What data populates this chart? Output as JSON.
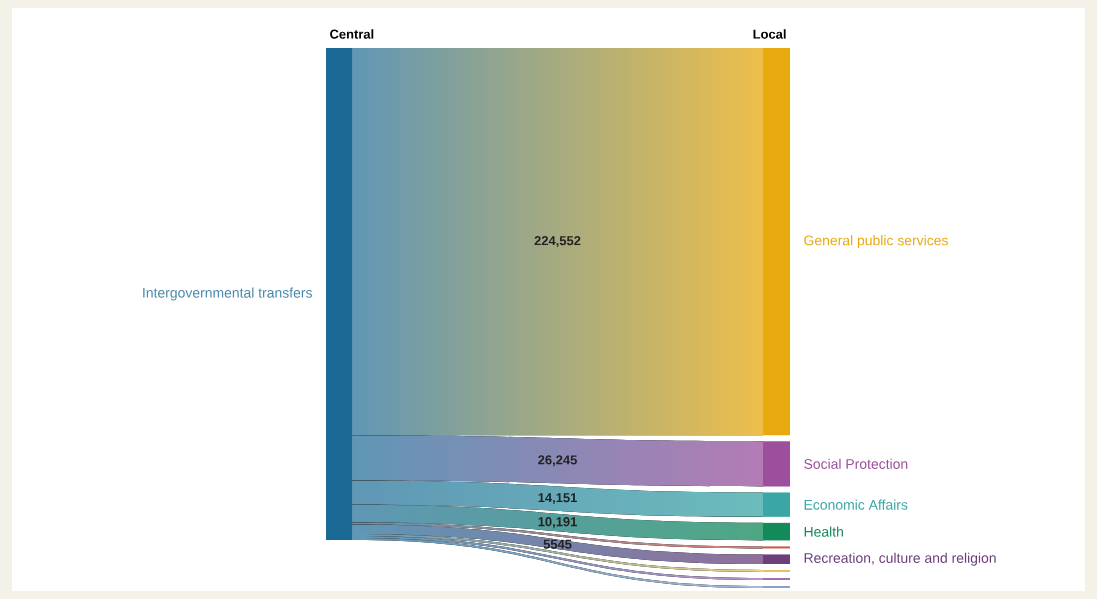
{
  "chart_data": {
    "type": "other",
    "annotations": [
      "Central",
      "Local",
      "Intergovernmental transfers"
    ],
    "color": "#1b6a96",
    "categories": [
      "General public services",
      "Social Protection",
      "Economic Affairs",
      "Health",
      null,
      "Recreation, culture and religion",
      null,
      null,
      null
    ],
    "values": [
      224552,
      26245,
      14151,
      10191,
      null,
      5545,
      null,
      null,
      null
    ],
    "value_labels": [
      "224,552",
      "26,245",
      "14,151",
      "10,191",
      null,
      "5545",
      null,
      null,
      null
    ],
    "colors": [
      "#e8a90e",
      "#9b4f9c",
      "#3aa6a6",
      "#138a5a",
      "#d05444",
      "#6b3f7a",
      "#e8c060",
      "#a070b0",
      "#8fa0c0"
    ]
  }
}
